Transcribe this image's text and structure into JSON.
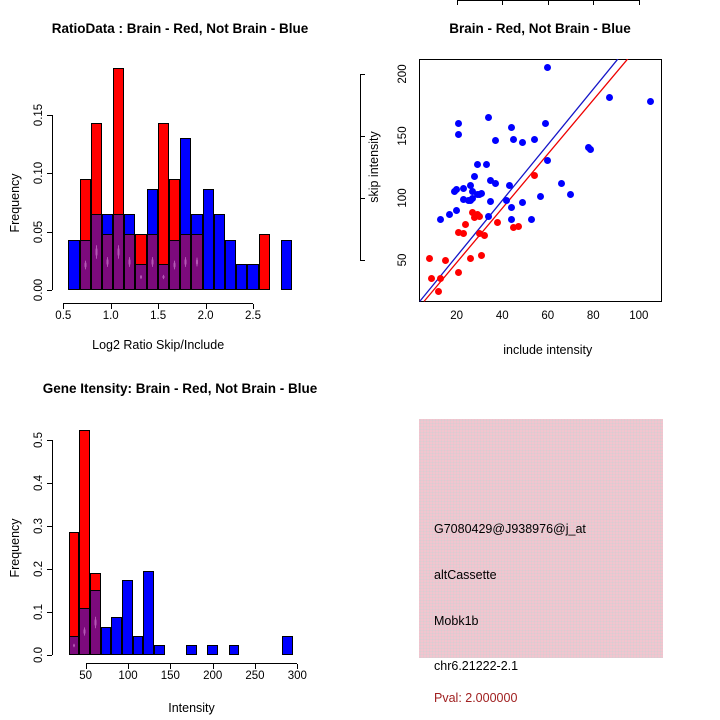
{
  "colors": {
    "red": "#ff0000",
    "blue": "#0000ff",
    "purple": "#7c0a7c",
    "purple_dot": "#b455b4",
    "fit_line_blue": "#1515c8",
    "fit_line_red": "#ee0000",
    "pink_box_bg": "#f2c5cf",
    "pink_box_dot": "#d8cdd2",
    "pval_red": "#a02020",
    "text_black": "#000000",
    "background": "#ffffff"
  },
  "chart_data": [
    {
      "id": "ratio_histogram",
      "type": "bar",
      "panel": "top-left",
      "title": "RatioData : Brain - Red, Not Brain - Blue",
      "xlabel": "Log2 Ratio Skip/Include",
      "ylabel": "Frequency",
      "x_ticks": [
        0.5,
        1.0,
        1.5,
        2.0,
        2.5
      ],
      "x_tick_labels": [
        "0.5",
        "1.0",
        "1.5",
        "2.0",
        "2.5"
      ],
      "y_ticks": [
        0,
        0.05,
        0.1,
        0.15
      ],
      "y_tick_labels": [
        "0.00",
        "0.05",
        "0.10",
        "0.15"
      ],
      "xlim": [
        0.46,
        3.02
      ],
      "ylim": [
        0,
        0.195
      ],
      "bins": {
        "start": 0.553,
        "width": 0.118
      },
      "overlap_note": "purple = overlap of red and blue histograms",
      "series": [
        {
          "name": "Brain (red)",
          "color_key": "red",
          "values": [
            0,
            0.095,
            0.143,
            0.048,
            0.19,
            0.048,
            0.048,
            0.048,
            0.143,
            0.095,
            0.048,
            0.048,
            0,
            0,
            0,
            0,
            0,
            0.048,
            0,
            0
          ]
        },
        {
          "name": "Not Brain (blue)",
          "color_key": "blue",
          "values": [
            0.043,
            0.043,
            0.065,
            0.065,
            0.065,
            0.065,
            0.022,
            0.087,
            0.022,
            0.043,
            0.13,
            0.065,
            0.087,
            0.065,
            0.043,
            0.022,
            0.022,
            0,
            0,
            0.043
          ]
        }
      ]
    },
    {
      "id": "intensity_scatter",
      "type": "scatter",
      "panel": "top-right",
      "title": "Brain - Red, Not Brain - Blue",
      "xlabel": "include intensity",
      "ylabel": "skip intensity",
      "x_ticks": [
        20,
        40,
        60,
        80,
        100
      ],
      "x_tick_labels": [
        "20",
        "40",
        "60",
        "80",
        "100"
      ],
      "y_ticks": [
        50,
        100,
        150,
        200
      ],
      "y_tick_labels": [
        "50",
        "100",
        "150",
        "200"
      ],
      "xlim": [
        3.6,
        110
      ],
      "ylim": [
        16,
        212
      ],
      "series": [
        {
          "name": "Not Brain (blue)",
          "color_key": "blue",
          "points": [
            [
              60,
              205
            ],
            [
              87,
              181
            ],
            [
              105,
              178
            ],
            [
              34,
              165
            ],
            [
              21,
              160
            ],
            [
              44,
              157
            ],
            [
              59,
              160
            ],
            [
              21,
              151
            ],
            [
              37,
              146
            ],
            [
              45,
              147
            ],
            [
              49,
              145
            ],
            [
              54,
              147
            ],
            [
              78,
              141
            ],
            [
              79,
              139
            ],
            [
              29,
              127
            ],
            [
              33,
              127
            ],
            [
              60,
              130
            ],
            [
              28,
              117
            ],
            [
              35,
              114
            ],
            [
              37,
              112
            ],
            [
              66,
              112
            ],
            [
              26,
              110
            ],
            [
              20,
              107
            ],
            [
              23,
              108
            ],
            [
              43,
              110
            ],
            [
              70,
              103
            ],
            [
              27,
              105
            ],
            [
              30,
              103
            ],
            [
              19,
              105
            ],
            [
              23,
              99
            ],
            [
              26,
              98
            ],
            [
              57,
              101
            ],
            [
              35,
              97
            ],
            [
              42,
              98
            ],
            [
              49,
              96
            ],
            [
              25,
              98
            ],
            [
              27,
              100
            ],
            [
              29,
              103
            ],
            [
              31,
              104
            ],
            [
              20,
              90
            ],
            [
              44,
              92
            ],
            [
              17,
              87
            ],
            [
              13,
              83
            ],
            [
              34,
              85
            ],
            [
              44,
              83
            ],
            [
              53,
              83
            ]
          ]
        },
        {
          "name": "Brain (red)",
          "color_key": "red",
          "points": [
            [
              54,
              118
            ],
            [
              27,
              88
            ],
            [
              29,
              87
            ],
            [
              30,
              85
            ],
            [
              28,
              84
            ],
            [
              38,
              80
            ],
            [
              45,
              76
            ],
            [
              24,
              79
            ],
            [
              21,
              72
            ],
            [
              23,
              71
            ],
            [
              30,
              71
            ],
            [
              26,
              51
            ],
            [
              31,
              54
            ],
            [
              15,
              50
            ],
            [
              8,
              51
            ],
            [
              21,
              40
            ],
            [
              9,
              35
            ],
            [
              13,
              35
            ],
            [
              12,
              25
            ],
            [
              47,
              77
            ],
            [
              32,
              70
            ]
          ]
        }
      ],
      "fit_lines": [
        {
          "name": "blue fit",
          "color_key": "fit_line_blue",
          "x1": 3.9,
          "y1": 16.4,
          "x2": 91,
          "y2": 212
        },
        {
          "name": "red fit",
          "color_key": "fit_line_red",
          "x1": 5.8,
          "y1": 16.4,
          "x2": 95.3,
          "y2": 212
        }
      ]
    },
    {
      "id": "gene_intensity_histogram",
      "type": "bar",
      "panel": "bottom-left",
      "title": "Gene Itensity: Brain - Red, Not Brain - Blue",
      "xlabel": "Intensity",
      "ylabel": "Frequency",
      "x_ticks": [
        50,
        100,
        150,
        200,
        250,
        300
      ],
      "x_tick_labels": [
        "50",
        "100",
        "150",
        "200",
        "250",
        "300"
      ],
      "y_ticks": [
        0,
        0.1,
        0.2,
        0.3,
        0.4,
        0.5
      ],
      "y_tick_labels": [
        "0.0",
        "0.1",
        "0.2",
        "0.3",
        "0.4",
        "0.5"
      ],
      "xlim": [
        23.6,
        305.5
      ],
      "ylim": [
        0,
        0.55
      ],
      "bins": {
        "start": 30,
        "width": 12.6
      },
      "overlap_note": "purple = overlap of red and blue histograms",
      "series": [
        {
          "name": "Brain (red)",
          "color_key": "red",
          "values": [
            0.286,
            0.524,
            0.19,
            0,
            0,
            0,
            0,
            0,
            0,
            0,
            0,
            0,
            0,
            0,
            0,
            0,
            0,
            0,
            0,
            0,
            0
          ]
        },
        {
          "name": "Not Brain (blue)",
          "color_key": "blue",
          "values": [
            0.043,
            0.109,
            0.152,
            0.065,
            0.087,
            0.174,
            0.043,
            0.196,
            0.022,
            0,
            0,
            0.022,
            0,
            0.022,
            0,
            0.022,
            0,
            0,
            0,
            0,
            0.043
          ]
        }
      ]
    }
  ],
  "info_box": {
    "lines": [
      {
        "text": "G7080429@J938976@j_at",
        "color_key": "text_black"
      },
      {
        "text": "altCassette",
        "color_key": "text_black"
      },
      {
        "text": "Mobk1b",
        "color_key": "text_black"
      },
      {
        "text": "chr6.21222-2.1",
        "color_key": "text_black"
      },
      {
        "text": "Pval: 2.000000",
        "color_key": "pval_red"
      }
    ]
  }
}
